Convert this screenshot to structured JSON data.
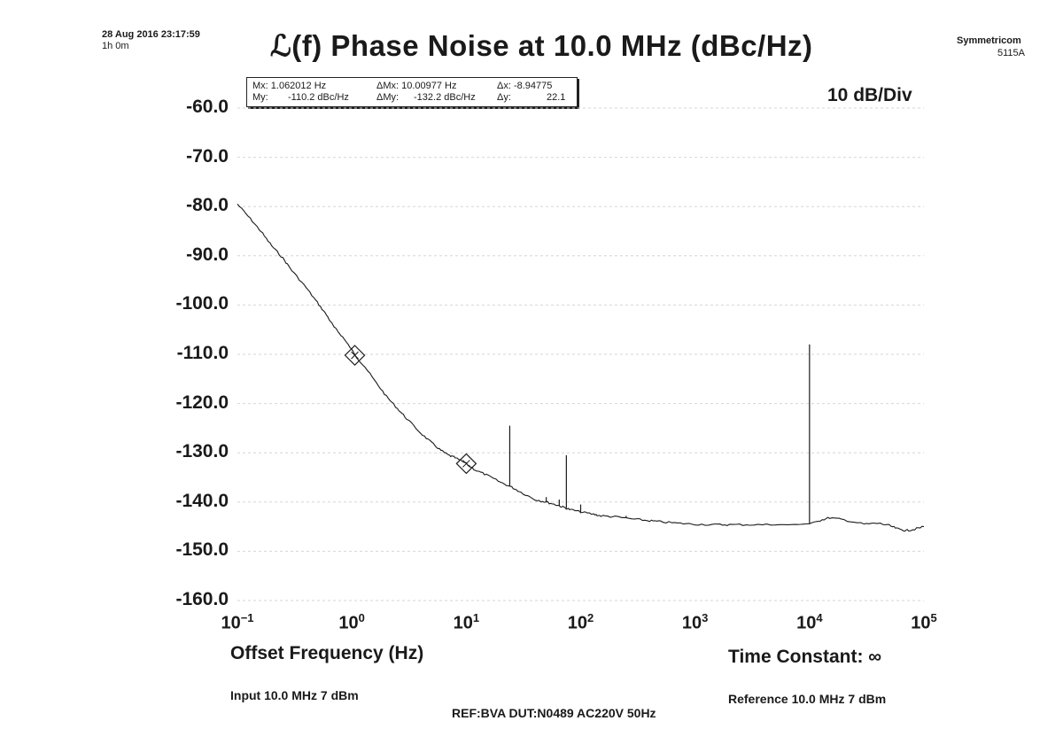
{
  "header": {
    "datetime": "28 Aug 2016 23:17:59",
    "duration": "1h 0m",
    "title": "ℒ(f) Phase Noise at 10.0 MHz (dBc/Hz)",
    "brand": "Symmetricom",
    "model": "5115A",
    "scale": "10 dB/Div"
  },
  "markers": {
    "mx": "Mx: 1.062012 Hz",
    "my": "My:",
    "my_value": "-110.2 dBc/Hz",
    "dmx": "ΔMx: 10.00977 Hz",
    "dmy": "ΔMy:",
    "dmy_value": "-132.2 dBc/Hz",
    "dx": "Δx: -8.94775",
    "dy": "Δy:",
    "dy_value": "22.1"
  },
  "footer": {
    "xlabel": "Offset Frequency (Hz)",
    "time_constant": "Time Constant: ∞",
    "input": "Input 10.0 MHz 7 dBm",
    "reference": "Reference 10.0 MHz 7 dBm",
    "ref_line": "REF:BVA DUT:N0489 AC220V 50Hz"
  },
  "chart_data": {
    "type": "line",
    "title": "ℒ(f) Phase Noise at 10.0 MHz (dBc/Hz)",
    "xlabel": "Offset Frequency (Hz)",
    "ylabel": "",
    "xscale": "log",
    "xlim": [
      0.1,
      100000
    ],
    "ylim": [
      -160,
      -60
    ],
    "grid": true,
    "y_ticks": [
      "-60.0",
      "-70.0",
      "-80.0",
      "-90.0",
      "-100.0",
      "-110.0",
      "-120.0",
      "-130.0",
      "-140.0",
      "-150.0",
      "-160.0"
    ],
    "x_ticks": [
      {
        "base": "10",
        "exp": "−1"
      },
      {
        "base": "10",
        "exp": "0"
      },
      {
        "base": "10",
        "exp": "1"
      },
      {
        "base": "10",
        "exp": "2"
      },
      {
        "base": "10",
        "exp": "3"
      },
      {
        "base": "10",
        "exp": "4"
      },
      {
        "base": "10",
        "exp": "5"
      }
    ],
    "series": [
      {
        "x": [
          0.1,
          0.13,
          0.16,
          0.2,
          0.25,
          0.3,
          0.4,
          0.5,
          0.6,
          0.7,
          0.8,
          1.0,
          1.062,
          1.3,
          1.6,
          2.0,
          2.5,
          3.0,
          4.0,
          5.0,
          6.0,
          7.0,
          8.0,
          10.0,
          12,
          15,
          20,
          25,
          30,
          40,
          50,
          60,
          70,
          80,
          100,
          130,
          150,
          200,
          300,
          400,
          500,
          700,
          1000,
          1500,
          2000,
          3000,
          5000,
          7000,
          10000,
          12000,
          15000,
          20000,
          30000,
          40000,
          50000,
          60000,
          70000,
          80000,
          100000
        ],
        "y": [
          -79.5,
          -82.5,
          -85.0,
          -88.0,
          -90.5,
          -93.0,
          -96.5,
          -99.5,
          -102.0,
          -104.5,
          -106.0,
          -109.0,
          -110.2,
          -112.5,
          -115.5,
          -118.5,
          -121.0,
          -123.0,
          -126.0,
          -128.0,
          -129.5,
          -130.5,
          -131.0,
          -132.2,
          -133.5,
          -134.5,
          -136.0,
          -137.0,
          -138.0,
          -139.5,
          -140.0,
          -140.5,
          -141.0,
          -141.5,
          -142.0,
          -142.5,
          -142.8,
          -143.0,
          -143.5,
          -143.8,
          -144.0,
          -144.3,
          -144.5,
          -144.6,
          -144.6,
          -144.6,
          -144.6,
          -144.6,
          -144.4,
          -143.8,
          -143.2,
          -143.6,
          -144.5,
          -144.3,
          -144.8,
          -145.5,
          -145.8,
          -145.6,
          -145.0
        ]
      }
    ],
    "spurs": [
      {
        "x": 24,
        "y": -124.5
      },
      {
        "x": 50,
        "y": -139.0
      },
      {
        "x": 65,
        "y": -139.5
      },
      {
        "x": 75,
        "y": -130.5
      },
      {
        "x": 100,
        "y": -140.5
      },
      {
        "x": 250,
        "y": -142.8
      },
      {
        "x": 10000,
        "y": -108.0
      }
    ],
    "markers": [
      {
        "x": 1.062012,
        "y": -110.2
      },
      {
        "x": 10.00977,
        "y": -132.2
      }
    ]
  }
}
